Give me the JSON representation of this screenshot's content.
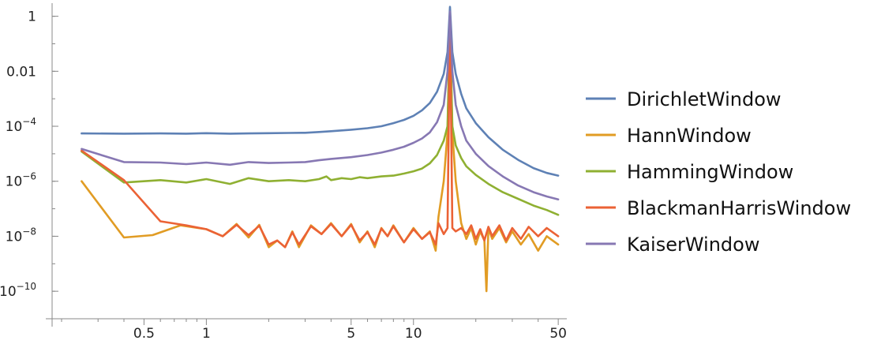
{
  "chart_data": {
    "type": "line",
    "xscale": "log",
    "yscale": "log",
    "xlim": [
      0.18,
      55
    ],
    "ylim": [
      1e-11,
      3
    ],
    "xticks": [
      {
        "value": 0.5,
        "label": "0.5"
      },
      {
        "value": 1,
        "label": "1"
      },
      {
        "value": 5,
        "label": "5"
      },
      {
        "value": 10,
        "label": "10"
      },
      {
        "value": 50,
        "label": "50"
      }
    ],
    "yticks": [
      {
        "value": 1,
        "label": "1",
        "exp": ""
      },
      {
        "value": 0.01,
        "label": "0.01",
        "exp": ""
      },
      {
        "value": 0.0001,
        "label": "10",
        "exp": "−4"
      },
      {
        "value": 1e-06,
        "label": "10",
        "exp": "−6"
      },
      {
        "value": 1e-08,
        "label": "10",
        "exp": "−8"
      },
      {
        "value": 1e-10,
        "label": "10",
        "exp": "−10"
      }
    ],
    "legend_position": "right",
    "series": [
      {
        "name": "DirichletWindow",
        "color": "#5e81b5",
        "x": [
          0.25,
          0.4,
          0.6,
          0.8,
          1,
          1.3,
          1.6,
          2,
          2.5,
          3,
          3.5,
          4,
          5,
          6,
          7,
          8,
          9,
          10,
          11,
          12,
          13,
          14,
          14.6,
          15,
          15.4,
          16,
          17,
          18,
          20,
          23,
          27,
          32,
          38,
          44,
          50
        ],
        "y": [
          5.5e-05,
          5.4e-05,
          5.5e-05,
          5.4e-05,
          5.6e-05,
          5.4e-05,
          5.5e-05,
          5.6e-05,
          5.7e-05,
          5.8e-05,
          6.2e-05,
          6.6e-05,
          7.5e-05,
          8.5e-05,
          0.0001,
          0.00013,
          0.00017,
          0.00024,
          0.00038,
          0.0007,
          0.0018,
          0.008,
          0.05,
          2.2,
          0.05,
          0.008,
          0.0015,
          0.00045,
          0.00013,
          4e-05,
          1.4e-05,
          6e-06,
          3e-06,
          2e-06,
          1.6e-06
        ]
      },
      {
        "name": "HannWindow",
        "color": "#e19c24",
        "x": [
          0.25,
          0.4,
          0.55,
          0.75,
          1,
          1.2,
          1.4,
          1.6,
          1.8,
          2,
          2.2,
          2.4,
          2.6,
          2.8,
          3.2,
          3.6,
          4,
          4.5,
          5,
          5.5,
          6,
          6.5,
          7,
          7.5,
          8,
          9,
          10,
          11,
          12,
          12.8,
          13.2,
          14,
          14.6,
          15,
          15.4,
          16,
          17,
          18,
          19,
          20,
          21,
          22,
          22.5,
          23,
          24,
          26,
          28,
          30,
          33,
          36,
          40,
          44,
          50
        ],
        "y": [
          1e-06,
          9e-09,
          1.1e-08,
          2.5e-08,
          1.8e-08,
          1e-08,
          2.8e-08,
          9e-09,
          2.6e-08,
          4e-09,
          7e-09,
          4e-09,
          1.5e-08,
          4e-09,
          2.5e-08,
          1.2e-08,
          3e-08,
          1e-08,
          2.8e-08,
          6e-09,
          1.5e-08,
          4e-09,
          2e-08,
          1e-08,
          2.5e-08,
          6e-09,
          2e-08,
          8e-09,
          1.5e-08,
          3e-09,
          5e-08,
          1e-06,
          6e-05,
          0.5,
          6e-05,
          1e-06,
          3e-08,
          8e-09,
          2e-08,
          5e-09,
          1.5e-08,
          7e-09,
          1e-10,
          2e-08,
          8e-09,
          2e-08,
          6e-09,
          1.5e-08,
          5e-09,
          1.2e-08,
          3e-09,
          1e-08,
          5e-09
        ]
      },
      {
        "name": "HammingWindow",
        "color": "#8fb032",
        "x": [
          0.25,
          0.4,
          0.6,
          0.8,
          1,
          1.3,
          1.6,
          2,
          2.5,
          3,
          3.5,
          3.8,
          4,
          4.5,
          5,
          5.5,
          6,
          7,
          8,
          9,
          10,
          11,
          12,
          13,
          14,
          14.6,
          15,
          15.4,
          16,
          17,
          18,
          20,
          23,
          27,
          32,
          38,
          44,
          50
        ],
        "y": [
          1.2e-05,
          9e-07,
          1.1e-06,
          9e-07,
          1.2e-06,
          8e-07,
          1.3e-06,
          1e-06,
          1.1e-06,
          1e-06,
          1.2e-06,
          1.5e-06,
          1.1e-06,
          1.3e-06,
          1.2e-06,
          1.4e-06,
          1.3e-06,
          1.5e-06,
          1.6e-06,
          1.9e-06,
          2.3e-06,
          2.9e-06,
          4.5e-06,
          9e-06,
          3e-05,
          0.0001,
          0.6,
          0.0001,
          2e-05,
          7e-06,
          3.5e-06,
          1.7e-06,
          8e-07,
          4e-07,
          2.3e-07,
          1.3e-07,
          9e-08,
          6e-08
        ]
      },
      {
        "name": "BlackmanHarrisWindow",
        "color": "#eb6235",
        "x": [
          0.25,
          0.4,
          0.6,
          0.8,
          1,
          1.2,
          1.4,
          1.6,
          1.8,
          2,
          2.2,
          2.4,
          2.6,
          2.8,
          3.2,
          3.6,
          4,
          4.5,
          5,
          5.5,
          6,
          6.5,
          7,
          7.5,
          8,
          9,
          10,
          11,
          12,
          12.8,
          13.2,
          14,
          14.6,
          15,
          15.4,
          16,
          17,
          18,
          19,
          20,
          21,
          22,
          23,
          24,
          26,
          28,
          30,
          33,
          36,
          40,
          44,
          50
        ],
        "y": [
          1.3e-05,
          1.1e-06,
          3.5e-08,
          2.5e-08,
          1.8e-08,
          1e-08,
          2.6e-08,
          1.1e-08,
          2.4e-08,
          5e-09,
          7e-09,
          4e-09,
          1.4e-08,
          5e-09,
          2.3e-08,
          1.2e-08,
          2.8e-08,
          1e-08,
          2.6e-08,
          7e-09,
          1.4e-08,
          5e-09,
          1.9e-08,
          1e-08,
          2.3e-08,
          6e-09,
          1.8e-08,
          8e-09,
          1.4e-08,
          5e-09,
          3e-08,
          1.2e-08,
          2e-08,
          0.9,
          2e-08,
          1.5e-08,
          2e-08,
          1.2e-08,
          2.5e-08,
          8e-09,
          1.8e-08,
          7e-09,
          2.2e-08,
          1e-08,
          2.5e-08,
          7e-09,
          2e-08,
          8e-09,
          2.2e-08,
          1e-08,
          2e-08,
          1e-08
        ]
      },
      {
        "name": "KaiserWindow",
        "color": "#8778b3",
        "x": [
          0.25,
          0.4,
          0.6,
          0.8,
          1,
          1.3,
          1.6,
          2,
          2.5,
          3,
          3.5,
          4,
          5,
          6,
          7,
          8,
          9,
          10,
          11,
          12,
          13,
          14,
          14.6,
          15,
          15.4,
          16,
          17,
          18,
          20,
          23,
          27,
          32,
          38,
          44,
          50
        ],
        "y": [
          1.5e-05,
          5e-06,
          4.8e-06,
          4.2e-06,
          4.8e-06,
          4e-06,
          5e-06,
          4.6e-06,
          4.8e-06,
          5e-06,
          5.8e-06,
          6.5e-06,
          7.5e-06,
          9e-06,
          1.1e-05,
          1.4e-05,
          1.8e-05,
          2.5e-05,
          3.6e-05,
          6e-05,
          0.00014,
          0.0006,
          0.01,
          1.5,
          0.01,
          0.0006,
          0.0001,
          3e-05,
          1e-05,
          3.6e-06,
          1.5e-06,
          7e-07,
          4e-07,
          2.8e-07,
          2.2e-07
        ]
      }
    ]
  }
}
